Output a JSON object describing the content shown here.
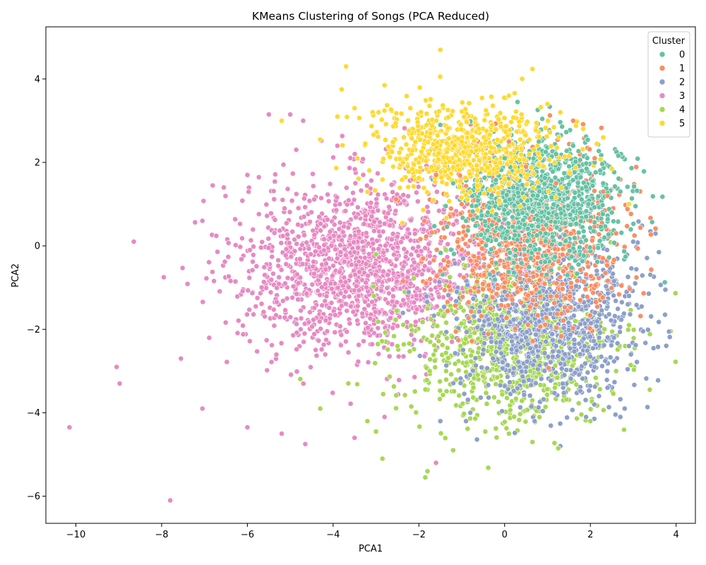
{
  "chart_data": {
    "type": "scatter",
    "title": "KMeans Clustering of Songs (PCA Reduced)",
    "xlabel": "PCA1",
    "ylabel": "PCA2",
    "xlim": [
      -10.7,
      4.45
    ],
    "ylim": [
      -6.65,
      5.25
    ],
    "xticks": [
      -10,
      -8,
      -6,
      -4,
      -2,
      0,
      2,
      4
    ],
    "yticks": [
      -6,
      -4,
      -2,
      0,
      2,
      4
    ],
    "grid": false,
    "legend": {
      "title": "Cluster",
      "placement": "top-right"
    },
    "series": [
      {
        "name": "0",
        "color": "#66c2a5",
        "cluster_center": [
          0.9,
          1.1
        ],
        "spread": [
          0.9,
          0.75
        ],
        "points": [
          [
            1.6,
            2.4
          ],
          [
            2.1,
            2.0
          ],
          [
            1.8,
            1.8
          ],
          [
            -1.5,
            2.9
          ],
          [
            0.8,
            2.5
          ],
          [
            1.2,
            2.2
          ],
          [
            2.7,
            1.3
          ],
          [
            2.3,
            1.5
          ],
          [
            0.0,
            2.1
          ],
          [
            -1.2,
            1.5
          ],
          [
            0.2,
            1.4
          ],
          [
            0.8,
            1.0
          ],
          [
            -0.9,
            0.6
          ],
          [
            -0.3,
            0.5
          ],
          [
            0.1,
            -0.3
          ],
          [
            0.6,
            0.0
          ],
          [
            1.9,
            0.7
          ],
          [
            2.5,
            0.8
          ]
        ]
      },
      {
        "name": "1",
        "color": "#fc8d62",
        "cluster_center": [
          0.6,
          0.3
        ],
        "spread": [
          1.1,
          0.95
        ],
        "points": [
          [
            1.6,
            3.0
          ],
          [
            2.1,
            2.1
          ],
          [
            2.3,
            1.3
          ],
          [
            2.4,
            1.2
          ],
          [
            0.1,
            2.5
          ],
          [
            -1.6,
            1.7
          ],
          [
            -1.0,
            1.0
          ],
          [
            -1.4,
            0.2
          ],
          [
            -1.5,
            -0.6
          ],
          [
            -1.9,
            -0.3
          ],
          [
            -1.1,
            0.1
          ],
          [
            0.3,
            -0.5
          ],
          [
            0.9,
            0.4
          ],
          [
            1.5,
            0.0
          ],
          [
            2.0,
            0.6
          ],
          [
            2.6,
            0.3
          ],
          [
            1.2,
            1.5
          ],
          [
            0.5,
            1.9
          ]
        ]
      },
      {
        "name": "2",
        "color": "#8da0cb",
        "cluster_center": [
          1.1,
          -1.7
        ],
        "spread": [
          1.05,
          1.0
        ],
        "points": [
          [
            3.75,
            -1.05
          ],
          [
            3.0,
            0.1
          ],
          [
            2.9,
            -1.2
          ],
          [
            2.8,
            -3.9
          ],
          [
            2.7,
            -4.1
          ],
          [
            2.4,
            -3.4
          ],
          [
            2.2,
            -3.6
          ],
          [
            1.3,
            -4.8
          ],
          [
            0.7,
            -4.2
          ],
          [
            -0.8,
            -4.0
          ],
          [
            -1.5,
            -4.2
          ],
          [
            -0.9,
            -4.2
          ],
          [
            1.9,
            -4.1
          ],
          [
            2.9,
            -2.4
          ],
          [
            2.1,
            -2.9
          ],
          [
            1.2,
            -2.4
          ],
          [
            0.5,
            -1.6
          ],
          [
            0.0,
            -1.1
          ]
        ]
      },
      {
        "name": "3",
        "color": "#e78ac3",
        "cluster_center": [
          -3.3,
          -0.5
        ],
        "spread": [
          1.45,
          1.0
        ],
        "points": [
          [
            -10.15,
            -4.35
          ],
          [
            -9.05,
            -2.9
          ],
          [
            -8.65,
            0.1
          ],
          [
            -7.95,
            -0.75
          ],
          [
            -7.8,
            -6.1
          ],
          [
            -7.55,
            -2.7
          ],
          [
            -7.05,
            0.6
          ],
          [
            -7.05,
            -3.9
          ],
          [
            -6.55,
            1.4
          ],
          [
            -6.0,
            1.7
          ],
          [
            -6.0,
            -4.35
          ],
          [
            -5.5,
            3.15
          ],
          [
            -5.0,
            3.15
          ],
          [
            -4.7,
            3.0
          ],
          [
            -4.65,
            -4.75
          ],
          [
            -5.2,
            -4.5
          ],
          [
            -3.5,
            -4.6
          ],
          [
            -1.6,
            -5.2
          ],
          [
            -3.9,
            2.4
          ],
          [
            -2.8,
            -4.1
          ]
        ]
      },
      {
        "name": "4",
        "color": "#a6d854",
        "cluster_center": [
          0.2,
          -2.4
        ],
        "spread": [
          1.2,
          0.9
        ],
        "points": [
          [
            -1.85,
            -5.55
          ],
          [
            -1.8,
            -5.4
          ],
          [
            -2.85,
            -5.1
          ],
          [
            -1.2,
            -4.9
          ],
          [
            0.65,
            -4.7
          ],
          [
            1.25,
            -4.85
          ],
          [
            -0.45,
            -4.45
          ],
          [
            0.1,
            -4.5
          ],
          [
            -3.0,
            -4.45
          ],
          [
            -3.2,
            -4.2
          ],
          [
            -4.3,
            -3.9
          ],
          [
            2.0,
            -4.2
          ],
          [
            2.9,
            -1.9
          ],
          [
            2.6,
            -3.0
          ],
          [
            -2.5,
            -2.4
          ],
          [
            -1.8,
            -1.5
          ],
          [
            -3.0,
            -0.2
          ],
          [
            0.6,
            -3.0
          ]
        ]
      },
      {
        "name": "5",
        "color": "#ffd92f",
        "cluster_center": [
          -1.0,
          2.3
        ],
        "spread": [
          1.1,
          0.55
        ],
        "points": [
          [
            -1.5,
            4.7
          ],
          [
            -3.7,
            4.3
          ],
          [
            -3.8,
            3.75
          ],
          [
            -2.8,
            3.85
          ],
          [
            -3.9,
            3.1
          ],
          [
            -3.5,
            3.3
          ],
          [
            -5.2,
            3.0
          ],
          [
            -4.3,
            2.55
          ],
          [
            -2.2,
            3.3
          ],
          [
            0.1,
            3.6
          ],
          [
            1.0,
            3.4
          ],
          [
            1.3,
            3.2
          ],
          [
            2.3,
            2.6
          ],
          [
            2.9,
            1.0
          ],
          [
            2.5,
            1.85
          ],
          [
            -0.3,
            2.9
          ],
          [
            -1.0,
            2.5
          ],
          [
            -2.0,
            2.0
          ],
          [
            -2.6,
            1.9
          ]
        ]
      }
    ]
  }
}
